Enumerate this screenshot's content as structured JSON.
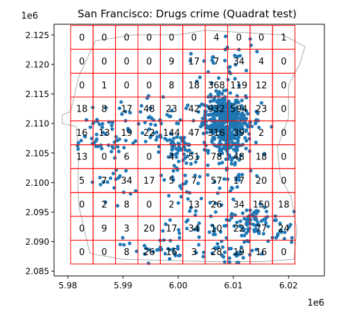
{
  "chart_data": {
    "type": "scatter",
    "title": "San Francisco: Drugs crime (Quadrat test)",
    "x_offset_label": "1e6",
    "y_offset_label": "1e6",
    "xlim": [
      5.9775,
      6.0265
    ],
    "ylim": [
      2.0842,
      2.1268
    ],
    "x_ticks": [
      {
        "value": 5.98,
        "label": "5.98"
      },
      {
        "value": 5.99,
        "label": "5.99"
      },
      {
        "value": 6.0,
        "label": "6.00"
      },
      {
        "value": 6.01,
        "label": "6.01"
      },
      {
        "value": 6.02,
        "label": "6.02"
      }
    ],
    "y_ticks": [
      {
        "value": 2.085,
        "label": "2.085"
      },
      {
        "value": 2.09,
        "label": "2.090"
      },
      {
        "value": 2.095,
        "label": "2.095"
      },
      {
        "value": 2.1,
        "label": "2.100"
      },
      {
        "value": 2.105,
        "label": "2.105"
      },
      {
        "value": 2.11,
        "label": "2.110"
      },
      {
        "value": 2.115,
        "label": "2.115"
      },
      {
        "value": 2.12,
        "label": "2.120"
      },
      {
        "value": 2.125,
        "label": "2.125"
      }
    ],
    "grid": {
      "x_edges": [
        5.9805,
        5.98457,
        5.98863,
        5.9927,
        5.99677,
        6.00083,
        6.0049,
        6.00897,
        6.01303,
        6.0171,
        6.02117
      ],
      "y_edges": [
        2.0862,
        2.09024,
        2.09428,
        2.09832,
        2.10236,
        2.1064,
        2.11044,
        2.11448,
        2.11852,
        2.12256,
        2.1266
      ],
      "counts_top_to_bottom": [
        [
          0,
          0,
          0,
          0,
          0,
          0,
          4,
          0,
          0,
          1
        ],
        [
          0,
          0,
          0,
          0,
          9,
          17,
          7,
          34,
          4,
          0
        ],
        [
          0,
          1,
          0,
          0,
          8,
          18,
          368,
          119,
          12,
          0
        ],
        [
          18,
          8,
          17,
          48,
          23,
          42,
          932,
          594,
          23,
          0
        ],
        [
          16,
          13,
          19,
          22,
          144,
          47,
          316,
          39,
          2,
          0
        ],
        [
          13,
          0,
          6,
          0,
          4,
          51,
          78,
          48,
          18,
          0
        ],
        [
          5,
          7,
          34,
          17,
          5,
          7,
          57,
          17,
          20,
          0
        ],
        [
          0,
          2,
          8,
          0,
          2,
          13,
          26,
          34,
          150,
          18
        ],
        [
          0,
          9,
          3,
          20,
          17,
          34,
          10,
          22,
          77,
          24
        ],
        [
          0,
          0,
          8,
          26,
          16,
          3,
          28,
          19,
          16,
          0
        ]
      ]
    },
    "boundary": [
      [
        5.9815,
        2.1095
      ],
      [
        5.982,
        2.1045
      ],
      [
        5.9818,
        2.1
      ],
      [
        5.982,
        2.096
      ],
      [
        5.984,
        2.088
      ],
      [
        5.99,
        2.087
      ],
      [
        5.998,
        2.0868
      ],
      [
        6.006,
        2.0866
      ],
      [
        6.015,
        2.0866
      ],
      [
        6.021,
        2.087
      ],
      [
        6.0215,
        2.092
      ],
      [
        6.0205,
        2.0975
      ],
      [
        6.0185,
        2.101
      ],
      [
        6.018,
        2.106
      ],
      [
        6.02,
        2.111
      ],
      [
        6.02,
        2.1165
      ],
      [
        6.022,
        2.12
      ],
      [
        6.023,
        2.123
      ],
      [
        6.019,
        2.125
      ],
      [
        6.01,
        2.1255
      ],
      [
        6.005,
        2.1258
      ],
      [
        6.0,
        2.125
      ],
      [
        5.992,
        2.125
      ],
      [
        5.985,
        2.124
      ],
      [
        5.982,
        2.118
      ],
      [
        5.9805,
        2.112
      ],
      [
        5.979,
        2.1115
      ],
      [
        5.979,
        2.11
      ],
      [
        5.9815,
        2.1095
      ]
    ],
    "point_clusters": [
      {
        "cx": 6.008,
        "cy": 2.111,
        "sx": 0.0018,
        "sy": 0.0018,
        "n": 220
      },
      {
        "cx": 6.01,
        "cy": 2.11,
        "sx": 0.0025,
        "sy": 0.002,
        "n": 140
      },
      {
        "cx": 6.009,
        "cy": 2.107,
        "sx": 0.0016,
        "sy": 0.0016,
        "n": 90
      },
      {
        "cx": 6.014,
        "cy": 2.0935,
        "sx": 0.0015,
        "sy": 0.0012,
        "n": 60
      },
      {
        "cx": 6.0,
        "cy": 2.106,
        "sx": 0.0015,
        "sy": 0.001,
        "n": 55
      },
      {
        "cx": 6.008,
        "cy": 2.112,
        "sx": 0.0015,
        "sy": 0.0022,
        "n": 60
      },
      {
        "cx": 6.01,
        "cy": 2.103,
        "sx": 0.002,
        "sy": 0.003,
        "n": 40
      },
      {
        "cx": 5.995,
        "cy": 2.11,
        "sx": 0.004,
        "sy": 0.0025,
        "n": 60
      },
      {
        "cx": 5.985,
        "cy": 2.108,
        "sx": 0.003,
        "sy": 0.002,
        "n": 40
      },
      {
        "cx": 6.005,
        "cy": 2.092,
        "sx": 0.004,
        "sy": 0.003,
        "n": 55
      },
      {
        "cx": 5.996,
        "cy": 2.089,
        "sx": 0.003,
        "sy": 0.0012,
        "n": 30
      },
      {
        "cx": 6.01,
        "cy": 2.088,
        "sx": 0.003,
        "sy": 0.001,
        "n": 25
      },
      {
        "cx": 6.002,
        "cy": 2.1,
        "sx": 0.0035,
        "sy": 0.003,
        "n": 30
      },
      {
        "cx": 6.019,
        "cy": 2.092,
        "sx": 0.0012,
        "sy": 0.0015,
        "n": 18
      },
      {
        "cx": 5.988,
        "cy": 2.1,
        "sx": 0.002,
        "sy": 0.0015,
        "n": 18
      },
      {
        "cx": 6.008,
        "cy": 2.12,
        "sx": 0.003,
        "sy": 0.0015,
        "n": 25
      },
      {
        "cx": 6.01,
        "cy": 2.123,
        "sx": 0.002,
        "sy": 0.0008,
        "n": 6
      }
    ],
    "point_color": "#1f77b4",
    "grid_color": "#ff0000",
    "boundary_color": "#aaaaaa",
    "xlabel": "",
    "ylabel": ""
  }
}
